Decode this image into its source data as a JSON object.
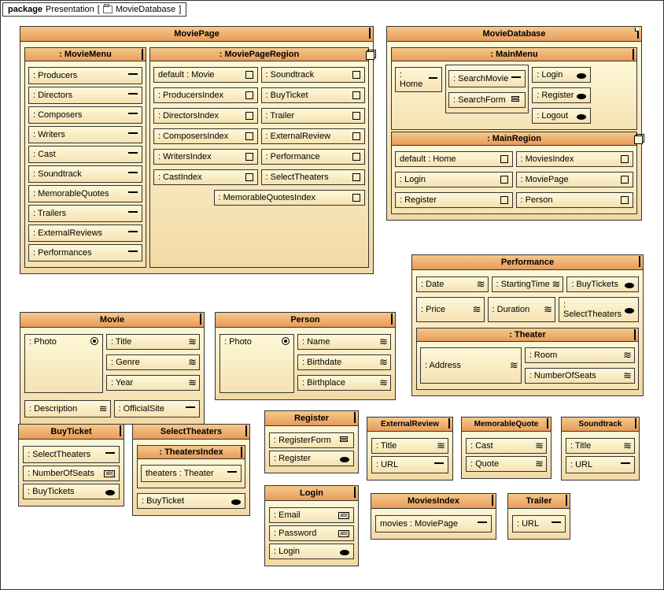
{
  "pkg": {
    "label": "package",
    "name": "Presentation",
    "tag": "MovieDatabase"
  },
  "moviePage": {
    "title": "MoviePage",
    "menu": {
      "title": ": MovieMenu",
      "items": [
        ": Producers",
        ": Directors",
        ": Composers",
        ": Writers",
        ": Cast",
        ": Soundtrack",
        ": MemorableQuotes",
        ": Trailers",
        ": ExternalReviews",
        ": Performances"
      ]
    },
    "region": {
      "title": ": MoviePageRegion",
      "left": [
        "default : Movie",
        ": ProducersIndex",
        ": DirectorsIndex",
        ": ComposersIndex",
        ": WritersIndex",
        ": CastIndex"
      ],
      "right": [
        ": Soundtrack",
        ": BuyTicket",
        ": Trailer",
        ": ExternalReview",
        ": Performance",
        ": SelectTheaters",
        ": MemorableQuotesIndex"
      ]
    }
  },
  "movieDb": {
    "title": "MovieDatabase",
    "mainMenu": {
      "title": ": MainMenu",
      "home": ": Home",
      "searchMovie": ": SearchMovie",
      "searchForm": ": SearchForm",
      "login": ": Login",
      "register": ": Register",
      "logout": ": Logout"
    },
    "mainRegion": {
      "title": ": MainRegion",
      "left": [
        "default : Home",
        ": Login",
        ": Register"
      ],
      "right": [
        ": MoviesIndex",
        ": MoviePage",
        ": Person"
      ]
    }
  },
  "movie": {
    "title": "Movie",
    "photo": ": Photo",
    "desc": ": Description",
    "attrs": [
      ": Title",
      ": Genre",
      ": Year"
    ],
    "site": ": OfficialSite"
  },
  "person": {
    "title": "Person",
    "photo": ": Photo",
    "attrs": [
      ": Name",
      ": Birthdate",
      ": Birthplace"
    ]
  },
  "perf": {
    "title": "Performance",
    "row1": [
      ": Date",
      ": StartingTime",
      ": BuyTickets"
    ],
    "row2": [
      ": Price",
      ": Duration",
      ": SelectTheaters"
    ],
    "theater": {
      "title": ": Theater",
      "addr": ": Address",
      "room": ": Room",
      "seats": ": NumberOfSeats"
    }
  },
  "buyTicket": {
    "title": "BuyTicket",
    "items": [
      ": SelectTheaters",
      ": NumberOfSeats",
      ": BuyTickets"
    ]
  },
  "selTheaters": {
    "title": "SelectTheaters",
    "idx": ": TheatersIndex",
    "th": "theaters : Theater",
    "buy": ": BuyTicket"
  },
  "register": {
    "title": "Register",
    "form": ": RegisterForm",
    "btn": ": Register"
  },
  "login": {
    "title": "Login",
    "email": ": Email",
    "pwd": ": Password",
    "btn": ": Login"
  },
  "extRev": {
    "title": "ExternalReview",
    "t": ": Title",
    "u": ": URL"
  },
  "memQ": {
    "title": "MemorableQuote",
    "c": ": Cast",
    "q": ": Quote"
  },
  "sound": {
    "title": "Soundtrack",
    "t": ": Title",
    "u": ": URL"
  },
  "mIdx": {
    "title": "MoviesIndex",
    "m": "movies : MoviePage"
  },
  "trailer": {
    "title": "Trailer",
    "u": ": URL"
  }
}
